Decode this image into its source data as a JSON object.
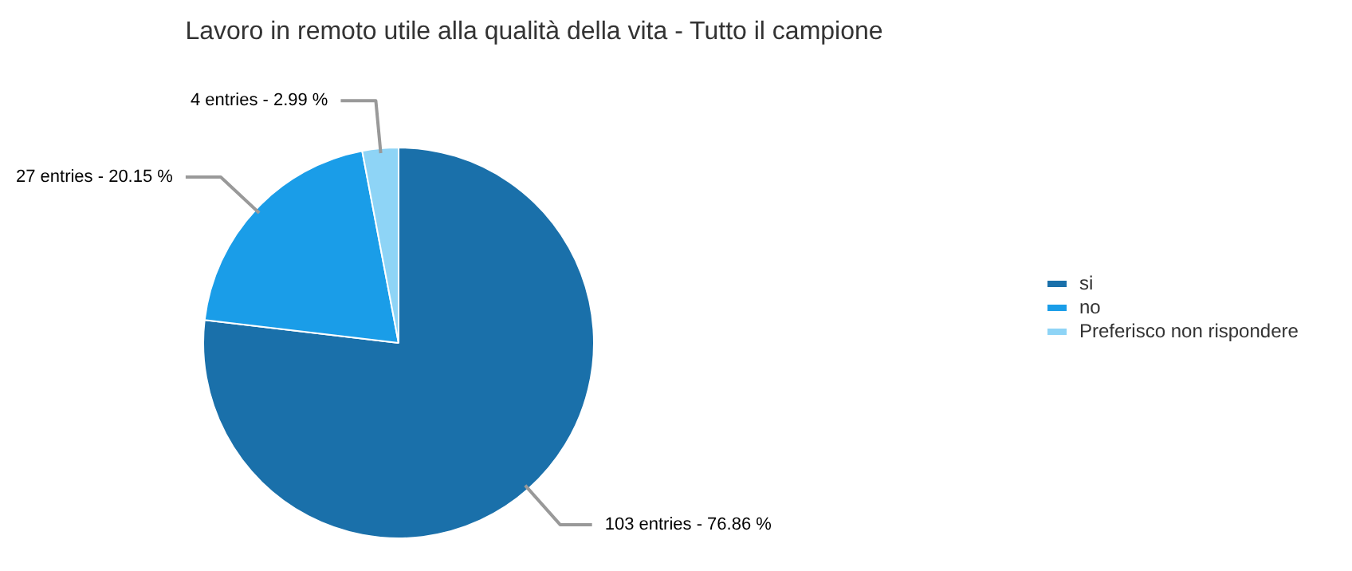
{
  "chart_data": {
    "type": "pie",
    "title": "Lavoro in remoto utile alla qualità della vita - Tutto il campione",
    "categories": [
      "si",
      "no",
      "Preferisco non rispondere"
    ],
    "values": [
      103,
      27,
      4
    ],
    "colors": [
      "#1a70aa",
      "#1a9de8",
      "#8ed4f6"
    ],
    "value_labels": [
      "103 entries - 76.86 %",
      "27 entries - 20.15 %",
      "4 entries - 2.99 %"
    ],
    "legend": "right"
  }
}
